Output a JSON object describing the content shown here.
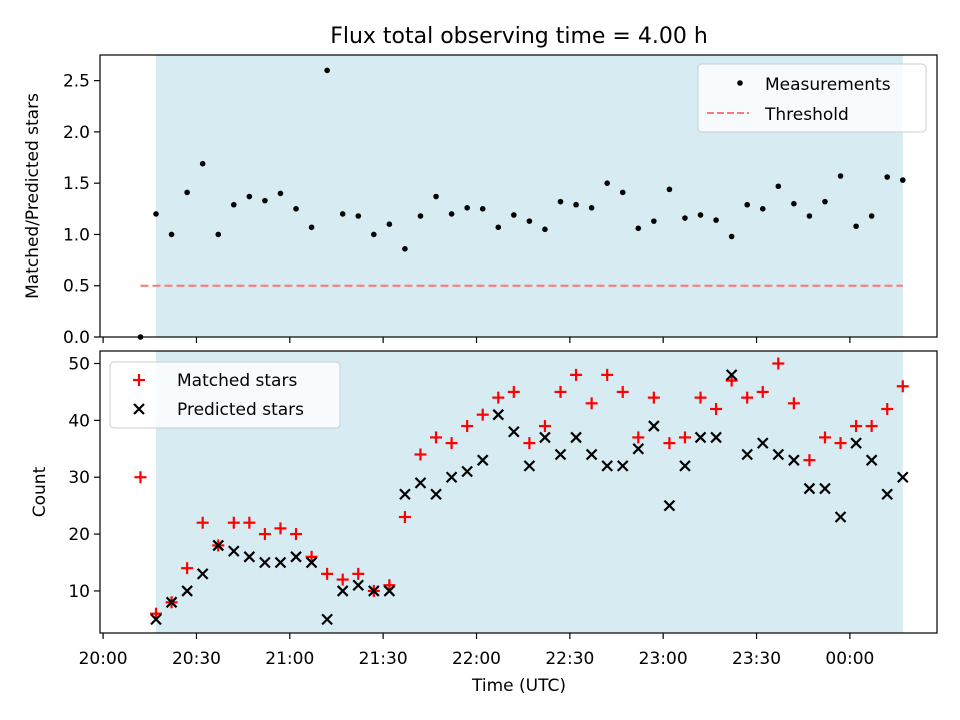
{
  "figure": {
    "title": "Flux total observing time = 4.00 h",
    "xlabel": "Time (UTC)",
    "x_tick_labels": [
      "20:00",
      "20:30",
      "21:00",
      "21:30",
      "22:00",
      "22:30",
      "23:00",
      "23:30",
      "00:00"
    ],
    "x_range_minutes": [
      -1,
      268
    ],
    "colors": {
      "band": "#add8e6",
      "band_opacity": 0.5,
      "threshold": "#ff7575",
      "matched": "#ff0000",
      "predicted": "#000000",
      "measurement": "#000000"
    }
  },
  "chart_data": [
    {
      "type": "scatter",
      "panel": "top",
      "ylabel": "Matched/Predicted stars",
      "ylim": [
        0,
        2.75
      ],
      "y_ticks": [
        0.0,
        0.5,
        1.0,
        1.5,
        2.0,
        2.5
      ],
      "y_tick_labels": [
        "0.0",
        "0.5",
        "1.0",
        "1.5",
        "2.0",
        "2.5"
      ],
      "shaded_span_minutes": [
        17,
        257
      ],
      "legend_position": "upper right",
      "series": [
        {
          "name": "Measurements",
          "marker": "dot",
          "x_minutes": [
            12,
            17,
            22,
            27,
            32,
            37,
            42,
            47,
            52,
            57,
            62,
            67,
            72,
            77,
            82,
            87,
            92,
            97,
            102,
            107,
            112,
            117,
            122,
            127,
            132,
            137,
            142,
            147,
            152,
            157,
            162,
            167,
            172,
            177,
            182,
            187,
            192,
            197,
            202,
            207,
            212,
            217,
            222,
            227,
            232,
            237,
            242,
            247,
            252,
            257
          ],
          "values": [
            0.0,
            1.2,
            1.0,
            1.41,
            1.69,
            1.0,
            1.29,
            1.37,
            1.33,
            1.4,
            1.25,
            1.07,
            2.6,
            1.2,
            1.18,
            1.0,
            1.1,
            0.86,
            1.18,
            1.37,
            1.2,
            1.26,
            1.25,
            1.07,
            1.19,
            1.13,
            1.05,
            1.32,
            1.29,
            1.26,
            1.5,
            1.41,
            1.06,
            1.13,
            1.44,
            1.16,
            1.19,
            1.14,
            0.98,
            1.29,
            1.25,
            1.47,
            1.3,
            1.18,
            1.32,
            1.57,
            1.08,
            1.18,
            1.56,
            1.53
          ]
        },
        {
          "name": "Threshold",
          "style": "dashed",
          "x_minutes": [
            12,
            257
          ],
          "values": [
            0.5,
            0.5
          ]
        }
      ]
    },
    {
      "type": "scatter",
      "panel": "bottom",
      "ylabel": "Count",
      "ylim": [
        2.6,
        52.2
      ],
      "y_ticks": [
        10,
        20,
        30,
        40,
        50
      ],
      "y_tick_labels": [
        "10",
        "20",
        "30",
        "40",
        "50"
      ],
      "shaded_span_minutes": [
        17,
        257
      ],
      "legend_position": "upper left",
      "series": [
        {
          "name": "Matched stars",
          "marker": "plus",
          "x_minutes": [
            12,
            17,
            22,
            27,
            32,
            37,
            42,
            47,
            52,
            57,
            62,
            67,
            72,
            77,
            82,
            87,
            92,
            97,
            102,
            107,
            112,
            117,
            122,
            127,
            132,
            137,
            142,
            147,
            152,
            157,
            162,
            167,
            172,
            177,
            182,
            187,
            192,
            197,
            202,
            207,
            212,
            217,
            222,
            227,
            232,
            237,
            242,
            247,
            252,
            257
          ],
          "values": [
            30,
            6,
            8,
            14,
            22,
            18,
            22,
            22,
            20,
            21,
            20,
            16,
            13,
            12,
            13,
            10,
            11,
            23,
            34,
            37,
            36,
            39,
            41,
            44,
            45,
            36,
            39,
            45,
            48,
            43,
            48,
            45,
            37,
            44,
            36,
            37,
            44,
            42,
            47,
            44,
            45,
            50,
            43,
            33,
            37,
            36,
            39,
            39,
            42,
            46
          ]
        },
        {
          "name": "Predicted stars",
          "marker": "x",
          "x_minutes": [
            17,
            22,
            27,
            32,
            37,
            42,
            47,
            52,
            57,
            62,
            67,
            72,
            77,
            82,
            87,
            92,
            97,
            102,
            107,
            112,
            117,
            122,
            127,
            132,
            137,
            142,
            147,
            152,
            157,
            162,
            167,
            172,
            177,
            182,
            187,
            192,
            197,
            202,
            207,
            212,
            217,
            222,
            227,
            232,
            237,
            242,
            247,
            252,
            257
          ],
          "values": [
            5,
            8,
            10,
            13,
            18,
            17,
            16,
            15,
            15,
            16,
            15,
            5,
            10,
            11,
            10,
            10,
            27,
            29,
            27,
            30,
            31,
            33,
            41,
            38,
            32,
            37,
            34,
            37,
            34,
            32,
            32,
            35,
            39,
            25,
            32,
            37,
            37,
            48,
            34,
            36,
            34,
            33,
            28,
            28,
            23,
            36,
            33,
            27,
            30
          ]
        }
      ]
    }
  ]
}
